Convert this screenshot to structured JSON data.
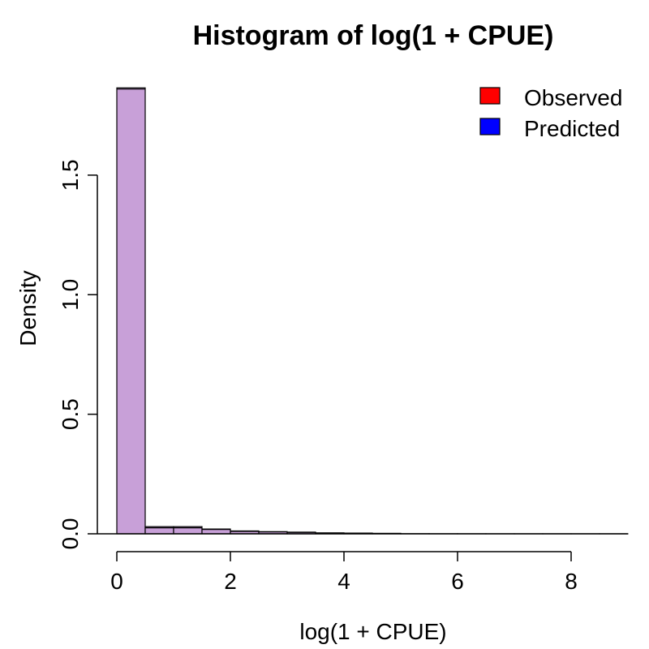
{
  "chart_data": {
    "type": "bar",
    "title": "Histogram of log(1 + CPUE)",
    "xlabel": "log(1 + CPUE)",
    "ylabel": "Density",
    "xlim": [
      0,
      9
    ],
    "ylim": [
      0,
      1.9
    ],
    "x_ticks": [
      0,
      2,
      4,
      6,
      8
    ],
    "x_tick_labels": [
      "0",
      "2",
      "4",
      "6",
      "8"
    ],
    "y_ticks": [
      0,
      0.5,
      1.0,
      1.5
    ],
    "y_tick_labels": [
      "0.0",
      "0.5",
      "1.0",
      "1.5"
    ],
    "bin_edges": [
      0,
      0.5,
      1.0,
      1.5,
      2.0,
      2.5,
      3.0,
      3.5,
      4.0,
      4.5,
      5.0,
      5.5,
      6.0,
      6.5,
      7.0,
      7.5,
      8.0,
      8.5,
      9.0
    ],
    "series": [
      {
        "name": "Observed",
        "color": "#ff0000",
        "values": [
          1.865,
          0.03,
          0.03,
          0.02,
          0.012,
          0.009,
          0.007,
          0.004,
          0.003,
          0.002,
          0.0005,
          0.0003,
          0.0002,
          0.0001,
          0.0001,
          0.0001,
          0.0001,
          0.0001
        ]
      },
      {
        "name": "Predicted",
        "color": "#0000ff",
        "values": [
          1.86,
          0.025,
          0.025,
          0.018,
          0.01,
          0.008,
          0.006,
          0.004,
          0.003,
          0.002,
          0.0005,
          0.0003,
          0.0002,
          0.0001,
          0.0001,
          0.0001,
          0.0001,
          0.0001
        ]
      }
    ],
    "overlap_color": "#c8a0d8",
    "legend_position": "top-right",
    "grid": false
  }
}
